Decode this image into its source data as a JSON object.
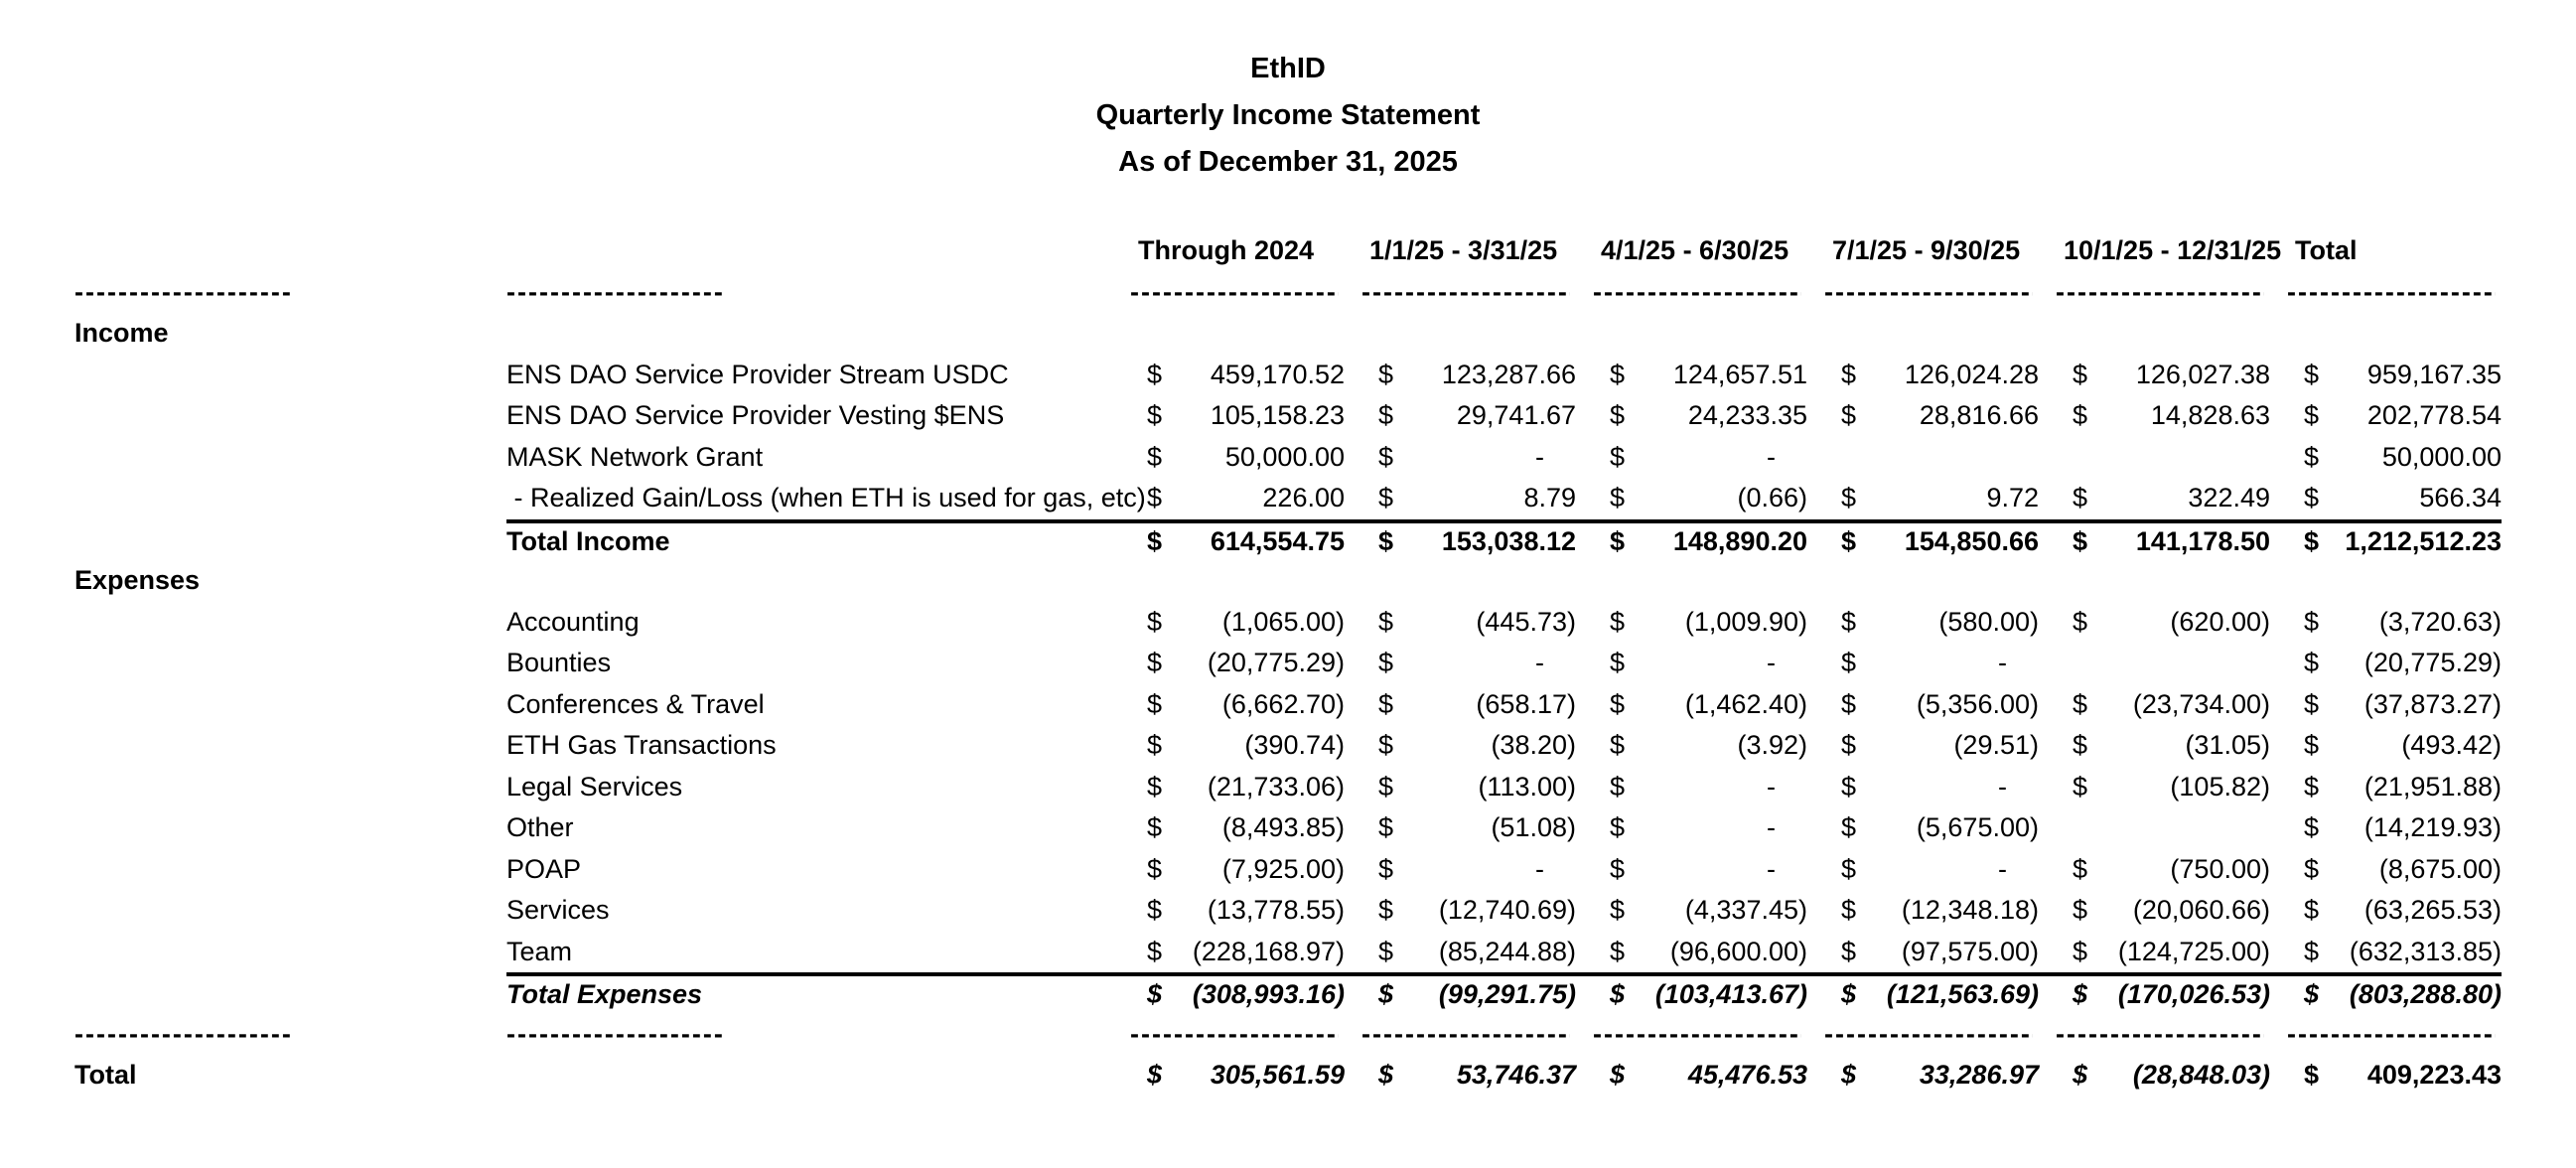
{
  "title": {
    "company": "EthID",
    "report": "Quarterly Income Statement",
    "as_of": "As of December 31, 2025"
  },
  "currency": "$",
  "separator": "--------------------------------",
  "columns": [
    "Through 2024",
    "1/1/25 - 3/31/25",
    "4/1/25 - 6/30/25",
    "7/1/25 - 9/30/25",
    "10/1/25 - 12/31/25",
    "Total"
  ],
  "rows": [
    {
      "type": "header",
      "key": "column-headers"
    },
    {
      "type": "dashes",
      "key": "header-separator"
    },
    {
      "type": "section",
      "key": "income-section",
      "label": "Income"
    },
    {
      "type": "item",
      "key": "ens-dao-stream-usdc",
      "label": "ENS DAO Service Provider Stream USDC",
      "values": [
        "459,170.52",
        "123,287.66",
        "124,657.51",
        "126,024.28",
        "126,027.38",
        "959,167.35"
      ]
    },
    {
      "type": "item",
      "key": "ens-dao-vesting-ens",
      "label": "ENS DAO Service Provider Vesting $ENS",
      "values": [
        "105,158.23",
        "29,741.67",
        "24,233.35",
        "28,816.66",
        "14,828.63",
        "202,778.54"
      ]
    },
    {
      "type": "item",
      "key": "mask-network-grant",
      "label": "MASK Network Grant",
      "values": [
        "50,000.00",
        "-",
        "-",
        "",
        "",
        "50,000.00"
      ]
    },
    {
      "type": "item",
      "key": "realized-gain-loss",
      "label": " - Realized Gain/Loss (when ETH is used for gas, etc)",
      "values": [
        "226.00",
        "8.79",
        "(0.66)",
        "9.72",
        "322.49",
        "566.34"
      ]
    },
    {
      "type": "total",
      "key": "total-income",
      "label": "Total Income",
      "values": [
        "614,554.75",
        "153,038.12",
        "148,890.20",
        "154,850.66",
        "141,178.50",
        "1,212,512.23"
      ]
    },
    {
      "type": "section",
      "key": "expenses-section",
      "label": "Expenses"
    },
    {
      "type": "item",
      "key": "accounting",
      "label": "Accounting",
      "values": [
        "(1,065.00)",
        "(445.73)",
        "(1,009.90)",
        "(580.00)",
        "(620.00)",
        "(3,720.63)"
      ]
    },
    {
      "type": "item",
      "key": "bounties",
      "label": "Bounties",
      "values": [
        "(20,775.29)",
        "-",
        "-",
        "-",
        "",
        "(20,775.29)"
      ]
    },
    {
      "type": "item",
      "key": "conferences-travel",
      "label": "Conferences & Travel",
      "values": [
        "(6,662.70)",
        "(658.17)",
        "(1,462.40)",
        "(5,356.00)",
        "(23,734.00)",
        "(37,873.27)"
      ]
    },
    {
      "type": "item",
      "key": "eth-gas-transactions",
      "label": "ETH Gas Transactions",
      "values": [
        "(390.74)",
        "(38.20)",
        "(3.92)",
        "(29.51)",
        "(31.05)",
        "(493.42)"
      ]
    },
    {
      "type": "item",
      "key": "legal-services",
      "label": "Legal Services",
      "values": [
        "(21,733.06)",
        "(113.00)",
        "-",
        "-",
        "(105.82)",
        "(21,951.88)"
      ]
    },
    {
      "type": "item",
      "key": "other",
      "label": "Other",
      "values": [
        "(8,493.85)",
        "(51.08)",
        "-",
        "(5,675.00)",
        "",
        "(14,219.93)"
      ]
    },
    {
      "type": "item",
      "key": "poap",
      "label": "POAP",
      "values": [
        "(7,925.00)",
        "-",
        "-",
        "-",
        "(750.00)",
        "(8,675.00)"
      ]
    },
    {
      "type": "item",
      "key": "services",
      "label": "Services",
      "values": [
        "(13,778.55)",
        "(12,740.69)",
        "(4,337.45)",
        "(12,348.18)",
        "(20,060.66)",
        "(63,265.53)"
      ]
    },
    {
      "type": "item",
      "key": "team",
      "label": "Team",
      "values": [
        "(228,168.97)",
        "(85,244.88)",
        "(96,600.00)",
        "(97,575.00)",
        "(124,725.00)",
        "(632,313.85)"
      ]
    },
    {
      "type": "total",
      "key": "total-expenses",
      "italic": true,
      "label": "Total Expenses",
      "values": [
        "(308,993.16)",
        "(99,291.75)",
        "(103,413.67)",
        "(121,563.69)",
        "(170,026.53)",
        "(803,288.80)"
      ]
    },
    {
      "type": "dashes",
      "key": "footer-separator"
    },
    {
      "type": "grandtotal",
      "key": "net-total",
      "label": "Total",
      "values": [
        "305,561.59",
        "53,746.37",
        "45,476.53",
        "33,286.97",
        "(28,848.03)",
        "409,223.43"
      ]
    }
  ]
}
